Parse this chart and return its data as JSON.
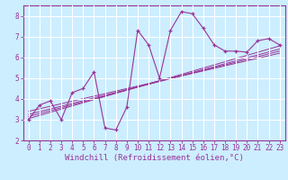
{
  "x_data": [
    0,
    1,
    2,
    3,
    4,
    5,
    6,
    7,
    8,
    9,
    10,
    11,
    12,
    13,
    14,
    15,
    16,
    17,
    18,
    19,
    20,
    21,
    22,
    23
  ],
  "y_main": [
    3.0,
    3.7,
    3.9,
    3.0,
    4.3,
    4.5,
    5.3,
    2.6,
    2.5,
    3.6,
    7.3,
    6.6,
    5.0,
    7.3,
    8.2,
    8.1,
    7.4,
    6.6,
    6.3,
    6.3,
    6.25,
    6.8,
    6.9,
    6.6
  ],
  "regression_lines": [
    {
      "x_start": 0,
      "y_start": 3.05,
      "x_end": 23,
      "y_end": 6.55
    },
    {
      "x_start": 0,
      "y_start": 3.15,
      "x_end": 23,
      "y_end": 6.4
    },
    {
      "x_start": 0,
      "y_start": 3.25,
      "x_end": 23,
      "y_end": 6.3
    },
    {
      "x_start": 0,
      "y_start": 3.4,
      "x_end": 23,
      "y_end": 6.2
    }
  ],
  "color": "#993399",
  "bg_color": "#cceeff",
  "grid_color": "#ffffff",
  "xlim": [
    -0.5,
    23.5
  ],
  "ylim": [
    2,
    8.5
  ],
  "yticks": [
    2,
    3,
    4,
    5,
    6,
    7,
    8
  ],
  "xlabel": "Windchill (Refroidissement éolien,°C)",
  "tick_fontsize": 5.5,
  "xlabel_fontsize": 6.5
}
